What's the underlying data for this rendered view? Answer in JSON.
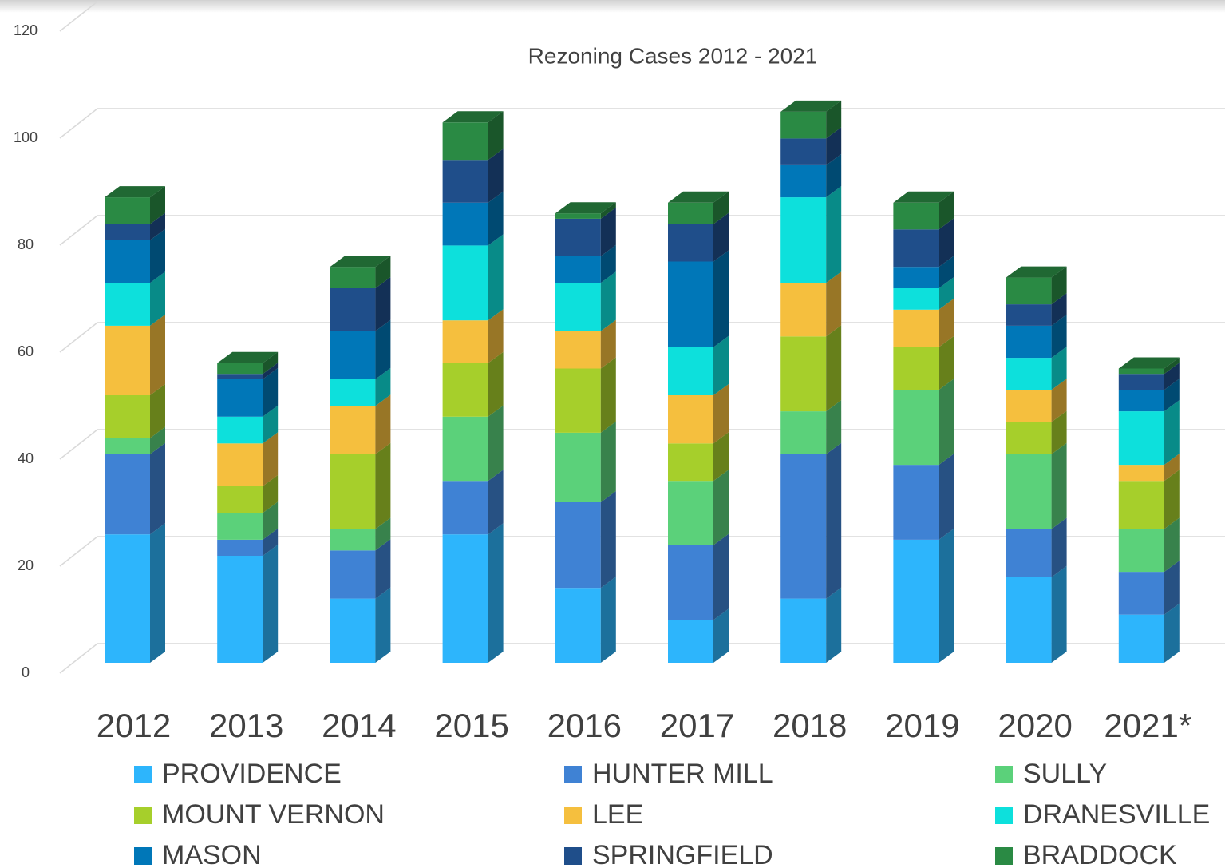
{
  "chart_data": {
    "type": "bar3d_stacked",
    "title": "Rezoning Cases 2012 - 2021",
    "categories": [
      "2012",
      "2013",
      "2014",
      "2015",
      "2016",
      "2017",
      "2018",
      "2019",
      "2020",
      "2021*"
    ],
    "series": [
      {
        "name": "PROVIDENCE",
        "color": "#2db5fc",
        "values": [
          24,
          20,
          12,
          24,
          14,
          8,
          12,
          23,
          16,
          9
        ]
      },
      {
        "name": "HUNTER MILL",
        "color": "#3f82d4",
        "values": [
          15,
          3,
          9,
          10,
          16,
          14,
          27,
          14,
          9,
          8
        ]
      },
      {
        "name": "SULLY",
        "color": "#5bd17a",
        "values": [
          3,
          5,
          4,
          12,
          13,
          12,
          8,
          14,
          14,
          8
        ]
      },
      {
        "name": "MOUNT VERNON",
        "color": "#a6cf2b",
        "values": [
          8,
          5,
          14,
          10,
          12,
          7,
          14,
          8,
          6,
          9
        ]
      },
      {
        "name": "LEE",
        "color": "#f5bf3e",
        "values": [
          13,
          8,
          9,
          8,
          7,
          9,
          10,
          7,
          6,
          3
        ]
      },
      {
        "name": "DRANESVILLE",
        "color": "#0de0dc",
        "values": [
          8,
          5,
          5,
          14,
          9,
          9,
          16,
          4,
          6,
          10
        ]
      },
      {
        "name": "MASON",
        "color": "#0077b8",
        "values": [
          8,
          7,
          9,
          8,
          5,
          16,
          6,
          4,
          6,
          4
        ]
      },
      {
        "name": "SPRINGFIELD",
        "color": "#1f4e8a",
        "values": [
          3,
          1,
          8,
          8,
          7,
          7,
          5,
          7,
          4,
          3
        ]
      },
      {
        "name": "BRADDOCK",
        "color": "#2a8a44",
        "values": [
          5,
          2,
          4,
          7,
          1,
          4,
          5,
          5,
          5,
          1
        ]
      }
    ],
    "ylim": [
      0,
      120
    ],
    "yticks": [
      0,
      20,
      40,
      60,
      80,
      100,
      120
    ],
    "grid": true,
    "legend": "bottom"
  }
}
